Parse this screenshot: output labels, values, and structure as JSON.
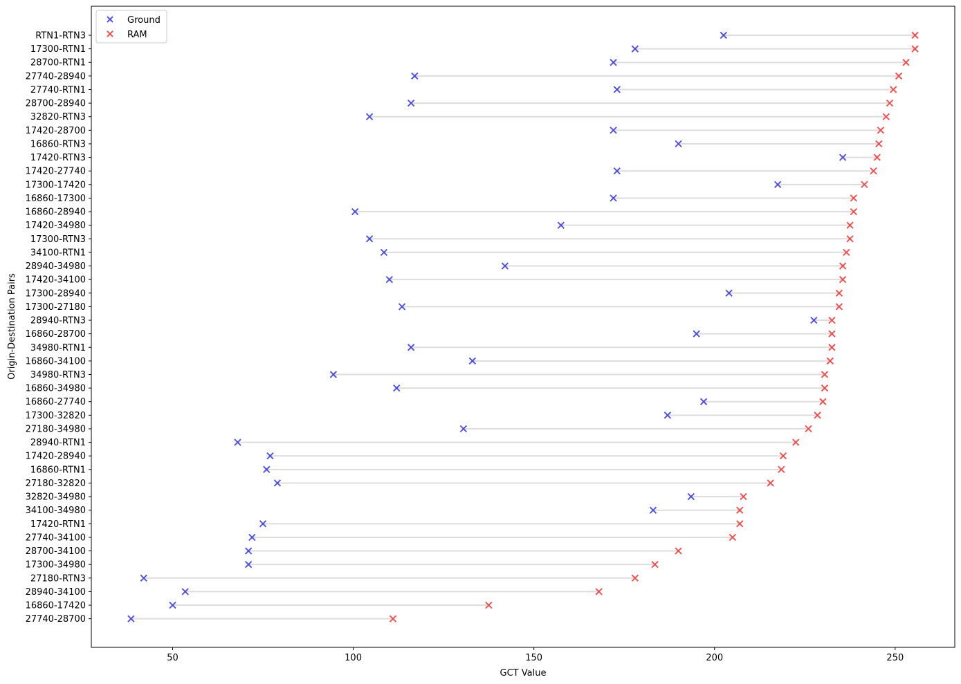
{
  "chart_data": {
    "type": "scatter",
    "title": "",
    "xlabel": "GCT Value",
    "ylabel": "Origin-Destination Pairs",
    "xlim": [
      27.5,
      266.5
    ],
    "xticks": [
      50,
      100,
      150,
      200,
      250
    ],
    "grid": false,
    "legend_position": "top-left",
    "categories": [
      "RTN1-RTN3",
      "17300-RTN1",
      "28700-RTN1",
      "27740-28940",
      "27740-RTN1",
      "28700-28940",
      "32820-RTN3",
      "17420-28700",
      "16860-RTN3",
      "17420-RTN3",
      "17420-27740",
      "17300-17420",
      "16860-17300",
      "16860-28940",
      "17420-34980",
      "17300-RTN3",
      "34100-RTN1",
      "28940-34980",
      "17420-34100",
      "17300-28940",
      "17300-27180",
      "28940-RTN3",
      "16860-28700",
      "34980-RTN1",
      "16860-34100",
      "34980-RTN3",
      "16860-34980",
      "16860-27740",
      "17300-32820",
      "27180-34980",
      "28940-RTN1",
      "17420-28940",
      "16860-RTN1",
      "27180-32820",
      "32820-34980",
      "34100-34980",
      "17420-RTN1",
      "27740-34100",
      "28700-34100",
      "17300-34980",
      "27180-RTN3",
      "28940-34100",
      "16860-17420",
      "27740-28700"
    ],
    "series": [
      {
        "name": "Ground",
        "color": "#4444dd",
        "marker": "x",
        "values": [
          202.5,
          178,
          172,
          117,
          173,
          116,
          104.5,
          172,
          190,
          235.5,
          173,
          217.5,
          172,
          100.5,
          157.5,
          104.5,
          108.5,
          142,
          110,
          204,
          113.5,
          227.5,
          195,
          116,
          133,
          94.5,
          112,
          197,
          187,
          130.5,
          68,
          77,
          76,
          79,
          193.5,
          183,
          75,
          72,
          71,
          71,
          42,
          53.5,
          50,
          38.5
        ]
      },
      {
        "name": "RAM",
        "color": "#ee4444",
        "marker": "x",
        "values": [
          255.5,
          255.5,
          253,
          251,
          249.5,
          248.5,
          247.5,
          246,
          245.5,
          245,
          244,
          241.5,
          238.5,
          238.5,
          237.5,
          237.5,
          236.5,
          235.5,
          235.5,
          234.5,
          234.5,
          232.5,
          232.5,
          232.5,
          232,
          230.5,
          230.5,
          230,
          228.5,
          226,
          222.5,
          219,
          218.5,
          215.5,
          208,
          207,
          207,
          205,
          190,
          183.5,
          178,
          168,
          137.5,
          111
        ]
      }
    ]
  }
}
